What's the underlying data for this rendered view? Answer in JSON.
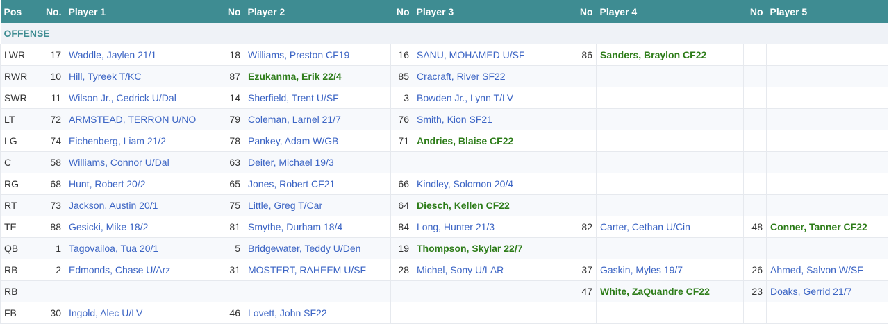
{
  "headers": [
    "Pos",
    "No.",
    "Player 1",
    "No",
    "Player 2",
    "No",
    "Player 3",
    "No",
    "Player 4",
    "No",
    "Player 5"
  ],
  "section": "OFFENSE",
  "colors": {
    "header": "#3e8c92",
    "link": "#3b64c4",
    "highlight": "#2e7d1a"
  },
  "rows": [
    {
      "pos": "LWR",
      "players": [
        {
          "no": "17",
          "name": "Waddle, Jaylen 21/1"
        },
        {
          "no": "18",
          "name": "Williams, Preston CF19"
        },
        {
          "no": "16",
          "name": "SANU, MOHAMED U/SF"
        },
        {
          "no": "86",
          "name": "Sanders, Braylon CF22",
          "highlight": true
        },
        {
          "no": "",
          "name": ""
        }
      ]
    },
    {
      "pos": "RWR",
      "players": [
        {
          "no": "10",
          "name": "Hill, Tyreek T/KC"
        },
        {
          "no": "87",
          "name": "Ezukanma, Erik 22/4",
          "highlight": true
        },
        {
          "no": "85",
          "name": "Cracraft, River SF22"
        },
        {
          "no": "",
          "name": ""
        },
        {
          "no": "",
          "name": ""
        }
      ]
    },
    {
      "pos": "SWR",
      "players": [
        {
          "no": "11",
          "name": "Wilson Jr., Cedrick U/Dal"
        },
        {
          "no": "14",
          "name": "Sherfield, Trent U/SF"
        },
        {
          "no": "3",
          "name": "Bowden Jr., Lynn T/LV"
        },
        {
          "no": "",
          "name": ""
        },
        {
          "no": "",
          "name": ""
        }
      ]
    },
    {
      "pos": "LT",
      "players": [
        {
          "no": "72",
          "name": "ARMSTEAD, TERRON U/NO"
        },
        {
          "no": "79",
          "name": "Coleman, Larnel 21/7"
        },
        {
          "no": "76",
          "name": "Smith, Kion SF21"
        },
        {
          "no": "",
          "name": ""
        },
        {
          "no": "",
          "name": ""
        }
      ]
    },
    {
      "pos": "LG",
      "players": [
        {
          "no": "74",
          "name": "Eichenberg, Liam 21/2"
        },
        {
          "no": "78",
          "name": "Pankey, Adam W/GB"
        },
        {
          "no": "71",
          "name": "Andries, Blaise CF22",
          "highlight": true
        },
        {
          "no": "",
          "name": ""
        },
        {
          "no": "",
          "name": ""
        }
      ]
    },
    {
      "pos": "C",
      "players": [
        {
          "no": "58",
          "name": "Williams, Connor U/Dal"
        },
        {
          "no": "63",
          "name": "Deiter, Michael 19/3"
        },
        {
          "no": "",
          "name": ""
        },
        {
          "no": "",
          "name": ""
        },
        {
          "no": "",
          "name": ""
        }
      ]
    },
    {
      "pos": "RG",
      "players": [
        {
          "no": "68",
          "name": "Hunt, Robert 20/2"
        },
        {
          "no": "65",
          "name": "Jones, Robert CF21"
        },
        {
          "no": "66",
          "name": "Kindley, Solomon 20/4"
        },
        {
          "no": "",
          "name": ""
        },
        {
          "no": "",
          "name": ""
        }
      ]
    },
    {
      "pos": "RT",
      "players": [
        {
          "no": "73",
          "name": "Jackson, Austin 20/1"
        },
        {
          "no": "75",
          "name": "Little, Greg T/Car"
        },
        {
          "no": "64",
          "name": "Diesch, Kellen CF22",
          "highlight": true
        },
        {
          "no": "",
          "name": ""
        },
        {
          "no": "",
          "name": ""
        }
      ]
    },
    {
      "pos": "TE",
      "players": [
        {
          "no": "88",
          "name": "Gesicki, Mike 18/2"
        },
        {
          "no": "81",
          "name": "Smythe, Durham 18/4"
        },
        {
          "no": "84",
          "name": "Long, Hunter 21/3"
        },
        {
          "no": "82",
          "name": "Carter, Cethan U/Cin"
        },
        {
          "no": "48",
          "name": "Conner, Tanner CF22",
          "highlight": true
        }
      ]
    },
    {
      "pos": "QB",
      "players": [
        {
          "no": "1",
          "name": "Tagovailoa, Tua 20/1"
        },
        {
          "no": "5",
          "name": "Bridgewater, Teddy U/Den"
        },
        {
          "no": "19",
          "name": "Thompson, Skylar 22/7",
          "highlight": true
        },
        {
          "no": "",
          "name": ""
        },
        {
          "no": "",
          "name": ""
        }
      ]
    },
    {
      "pos": "RB",
      "players": [
        {
          "no": "2",
          "name": "Edmonds, Chase U/Arz"
        },
        {
          "no": "31",
          "name": "MOSTERT, RAHEEM U/SF"
        },
        {
          "no": "28",
          "name": "Michel, Sony U/LAR"
        },
        {
          "no": "37",
          "name": "Gaskin, Myles 19/7"
        },
        {
          "no": "26",
          "name": "Ahmed, Salvon W/SF"
        }
      ]
    },
    {
      "pos": "RB",
      "players": [
        {
          "no": "",
          "name": ""
        },
        {
          "no": "",
          "name": ""
        },
        {
          "no": "",
          "name": ""
        },
        {
          "no": "47",
          "name": "White, ZaQuandre CF22",
          "highlight": true
        },
        {
          "no": "23",
          "name": "Doaks, Gerrid 21/7"
        }
      ]
    },
    {
      "pos": "FB",
      "players": [
        {
          "no": "30",
          "name": "Ingold, Alec U/LV"
        },
        {
          "no": "46",
          "name": "Lovett, John SF22"
        },
        {
          "no": "",
          "name": ""
        },
        {
          "no": "",
          "name": ""
        },
        {
          "no": "",
          "name": ""
        }
      ]
    }
  ]
}
